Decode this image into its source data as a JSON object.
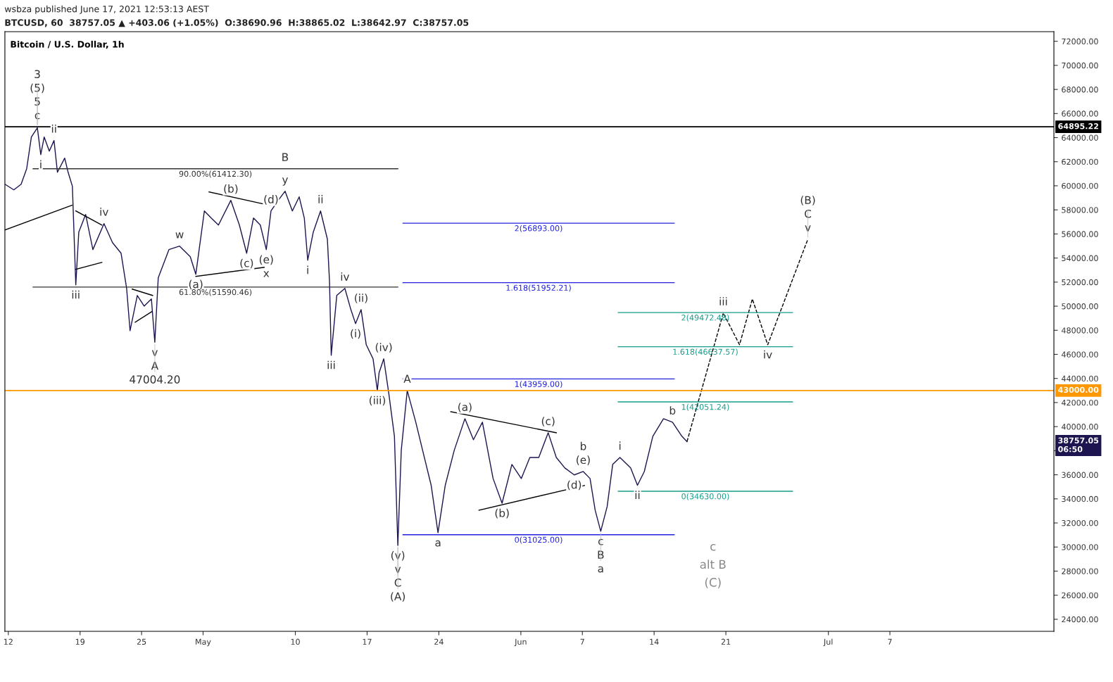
{
  "chart_data": {
    "type": "line",
    "title": "Bitcoin / U.S. Dollar, 1h",
    "xlim": [
      "2021-04-11T16:00",
      "2021-07-23T00:00"
    ],
    "xticks": [
      {
        "value": "2021-04-12",
        "label": "12"
      },
      {
        "value": "2021-04-19",
        "label": "19"
      },
      {
        "value": "2021-04-25",
        "label": "25"
      },
      {
        "value": "2021-05-01",
        "label": "May"
      },
      {
        "value": "2021-05-10",
        "label": "10"
      },
      {
        "value": "2021-05-17",
        "label": "17"
      },
      {
        "value": "2021-05-24",
        "label": "24"
      },
      {
        "value": "2021-06-01",
        "label": "Jun"
      },
      {
        "value": "2021-06-07",
        "label": "7"
      },
      {
        "value": "2021-06-14",
        "label": "14"
      },
      {
        "value": "2021-06-21",
        "label": "21"
      },
      {
        "value": "2021-07-01",
        "label": "Jul"
      },
      {
        "value": "2021-07-07",
        "label": "7"
      }
    ],
    "ylim": [
      23000,
      72800
    ],
    "yticks": [
      {
        "value": 24000,
        "label": "24000.00"
      },
      {
        "value": 26000,
        "label": "26000.00"
      },
      {
        "value": 28000,
        "label": "28000.00"
      },
      {
        "value": 30000,
        "label": "30000.00"
      },
      {
        "value": 32000,
        "label": "32000.00"
      },
      {
        "value": 34000,
        "label": "34000.00"
      },
      {
        "value": 36000,
        "label": "36000.00"
      },
      {
        "value": 38000,
        "label": null
      },
      {
        "value": 40000,
        "label": "40000.00"
      },
      {
        "value": 42000,
        "label": "42000.00"
      },
      {
        "value": 44000,
        "label": "44000.00"
      },
      {
        "value": 46000,
        "label": "46000.00"
      },
      {
        "value": 48000,
        "label": "48000.00"
      },
      {
        "value": 50000,
        "label": "50000.00"
      },
      {
        "value": 52000,
        "label": "52000.00"
      },
      {
        "value": 54000,
        "label": "54000.00"
      },
      {
        "value": 56000,
        "label": "56000.00"
      },
      {
        "value": 58000,
        "label": "58000.00"
      },
      {
        "value": 60000,
        "label": "60000.00"
      },
      {
        "value": 62000,
        "label": "62000.00"
      },
      {
        "value": 64000,
        "label": "64000.00"
      },
      {
        "value": 66000,
        "label": "66000.00"
      },
      {
        "value": 68000,
        "label": "68000.00"
      },
      {
        "value": 70000,
        "label": "70000.00"
      },
      {
        "value": 72000,
        "label": "72000.00"
      }
    ],
    "grid": false,
    "series": [
      {
        "color": "#1c1550",
        "line_style": "solid",
        "x": [
          "2021-04-11T16:00",
          "2021-04-12T13:00",
          "2021-04-13T06:00",
          "2021-04-13T19:00",
          "2021-04-14T06:00",
          "2021-04-14T20:00",
          "2021-04-15T04:00",
          "2021-04-15T12:00",
          "2021-04-16T00:00",
          "2021-04-16T11:00",
          "2021-04-16T19:00",
          "2021-04-17T12:00",
          "2021-04-17T20:00",
          "2021-04-18T06:00",
          "2021-04-18T14:00",
          "2021-04-18T21:00",
          "2021-04-19T13:00",
          "2021-04-20T06:00",
          "2021-04-21T08:00",
          "2021-04-22T04:00",
          "2021-04-23T00:00",
          "2021-04-23T13:00",
          "2021-04-23T21:00",
          "2021-04-24T14:00",
          "2021-04-25T06:00",
          "2021-04-25T23:00",
          "2021-04-26T07:00",
          "2021-04-26T15:00",
          "2021-04-27T16:00",
          "2021-04-28T17:00",
          "2021-04-29T18:00",
          "2021-04-30T07:00",
          "2021-05-01T03:00",
          "2021-05-01T19:00",
          "2021-05-02T12:00",
          "2021-05-03T17:00",
          "2021-05-04T13:00",
          "2021-05-05T06:00",
          "2021-05-05T22:00",
          "2021-05-06T14:00",
          "2021-05-07T04:00",
          "2021-05-07T15:00",
          "2021-05-08T08:00",
          "2021-05-09T00:00",
          "2021-05-09T17:00",
          "2021-05-10T09:00",
          "2021-05-10T21:00",
          "2021-05-11T05:00",
          "2021-05-11T18:00",
          "2021-05-12T11:00",
          "2021-05-13T03:00",
          "2021-05-13T08:00",
          "2021-05-13T12:00",
          "2021-05-14T01:00",
          "2021-05-14T20:00",
          "2021-05-15T10:00",
          "2021-05-15T21:00",
          "2021-05-16T10:00",
          "2021-05-16T22:00",
          "2021-05-17T14:00",
          "2021-05-18T00:00",
          "2021-05-18T04:00",
          "2021-05-18T15:00",
          "2021-05-19T03:00",
          "2021-05-19T16:00",
          "2021-05-20T00:00",
          "2021-05-20T08:00",
          "2021-05-20T22:00",
          "2021-05-21T18:00",
          "2021-05-22T10:00",
          "2021-05-23T06:00",
          "2021-05-23T22:00",
          "2021-05-24T15:00",
          "2021-05-25T12:00",
          "2021-05-26T13:00",
          "2021-05-27T09:00",
          "2021-05-28T06:00",
          "2021-05-29T07:00",
          "2021-05-30T04:00",
          "2021-05-31T03:00",
          "2021-06-01T01:00",
          "2021-06-01T21:00",
          "2021-06-02T18:00",
          "2021-06-03T16:00",
          "2021-06-04T11:00",
          "2021-06-05T07:00",
          "2021-06-06T05:00",
          "2021-06-07T02:00",
          "2021-06-07T18:00",
          "2021-06-08T06:00",
          "2021-06-08T19:00",
          "2021-06-09T10:00",
          "2021-06-09T23:00",
          "2021-06-10T16:00",
          "2021-06-11T17:00",
          "2021-06-12T09:00",
          "2021-06-13T01:00",
          "2021-06-13T21:00",
          "2021-06-14T22:00",
          "2021-06-15T19:00",
          "2021-06-16T17:00",
          "2021-06-17T05:00"
        ],
        "values": [
          60130,
          59660,
          60130,
          61420,
          64050,
          64810,
          62590,
          64050,
          62880,
          63760,
          61120,
          62300,
          61120,
          59960,
          51770,
          56160,
          57620,
          54700,
          56860,
          55280,
          54400,
          51480,
          47970,
          50890,
          50010,
          50600,
          47004.2,
          52350,
          54700,
          54990,
          54110,
          52650,
          57910,
          57320,
          56740,
          58790,
          56740,
          54400,
          57320,
          56740,
          54700,
          57910,
          58790,
          59550,
          57910,
          59080,
          57320,
          53820,
          56160,
          57910,
          55570,
          52060,
          45920,
          50890,
          51480,
          49720,
          48550,
          49720,
          46800,
          45630,
          43000,
          44460,
          45630,
          42710,
          39200,
          30130,
          38030,
          43000,
          40370,
          38030,
          35130,
          31190,
          35130,
          38030,
          40660,
          38910,
          40370,
          35690,
          33640,
          36860,
          35690,
          37440,
          37440,
          39490,
          37440,
          36570,
          35990,
          36270,
          35690,
          33060,
          31310,
          33350,
          36860,
          37440,
          36570,
          35130,
          36270,
          39200,
          40660,
          40370,
          39200,
          38757.05
        ]
      },
      {
        "color": "#000000",
        "line_style": "dashed",
        "x": [
          "2021-06-17T05:00",
          "2021-06-20T18:00",
          "2021-06-22T08:00",
          "2021-06-23T14:00",
          "2021-06-25T02:00",
          "2021-06-29T00:00"
        ],
        "values": [
          38757.05,
          49430,
          46800,
          50600,
          46800,
          55570
        ]
      },
      {
        "color": "#000000",
        "line_style": "solid",
        "x": [
          "2021-04-11T16:00",
          "2021-04-18T05:00"
        ],
        "values": [
          56330,
          58380
        ]
      },
      {
        "color": "#000000",
        "line_style": "solid",
        "x": [
          "2021-04-18T14:00",
          "2021-04-21T03:00"
        ],
        "values": [
          57910,
          56740
        ]
      },
      {
        "color": "#000000",
        "line_style": "solid",
        "x": [
          "2021-04-18T14:00",
          "2021-04-21T03:00"
        ],
        "values": [
          53060,
          53640
        ]
      },
      {
        "color": "#000000",
        "line_style": "solid",
        "x": [
          "2021-04-24T02:00",
          "2021-04-26T02:00"
        ],
        "values": [
          51420,
          50890
        ]
      },
      {
        "color": "#000000",
        "line_style": "solid",
        "x": [
          "2021-04-24T09:00",
          "2021-04-26T00:00"
        ],
        "values": [
          48670,
          49550
        ]
      },
      {
        "color": "#000000",
        "line_style": "solid",
        "x": [
          "2021-05-01T14:00",
          "2021-05-07T12:00"
        ],
        "values": [
          59490,
          58380
        ]
      },
      {
        "color": "#000000",
        "line_style": "solid",
        "x": [
          "2021-04-30T07:00",
          "2021-05-06T23:00"
        ],
        "values": [
          52470,
          53230
        ]
      },
      {
        "color": "#000000",
        "line_style": "solid",
        "x": [
          "2021-05-25T04:00",
          "2021-06-04T11:00"
        ],
        "values": [
          41240,
          39490
        ]
      },
      {
        "color": "#000000",
        "line_style": "solid",
        "x": [
          "2021-05-27T22:00",
          "2021-06-07T05:00"
        ],
        "values": [
          33060,
          35110
        ]
      },
      {
        "name": "90.00%(61412.30)",
        "color": "#333333",
        "line_style": "solid",
        "x": [
          "2021-04-14T10:00",
          "2021-05-20T00:00"
        ],
        "values": [
          61412.3,
          61412.3
        ]
      },
      {
        "name": "61.80%(51590.46)",
        "color": "#333333",
        "line_style": "solid",
        "x": [
          "2021-04-14T10:00",
          "2021-05-20T00:00"
        ],
        "values": [
          51590.46,
          51590.46
        ]
      },
      {
        "name": "2(56893.00)",
        "color": "#2020e0",
        "line_style": "solid",
        "x": [
          "2021-05-20T12:00",
          "2021-06-15T23:00"
        ],
        "values": [
          56893.0,
          56893.0
        ]
      },
      {
        "name": "1.618(51952.21)",
        "color": "#2020e0",
        "line_style": "solid",
        "x": [
          "2021-05-20T12:00",
          "2021-06-15T23:00"
        ],
        "values": [
          51952.21,
          51952.21
        ]
      },
      {
        "name": "1(43959.00)",
        "color": "#2020e0",
        "line_style": "solid",
        "x": [
          "2021-05-20T12:00",
          "2021-06-15T23:00"
        ],
        "values": [
          43959.0,
          43959.0
        ]
      },
      {
        "name": "0(31025.00)",
        "color": "#2020e0",
        "line_style": "solid",
        "x": [
          "2021-05-20T12:00",
          "2021-06-15T23:00"
        ],
        "values": [
          31025.0,
          31025.0
        ]
      },
      {
        "name": "2(49472.48)",
        "color": "#159c8a",
        "line_style": "solid",
        "x": [
          "2021-06-10T12:00",
          "2021-06-27T12:00"
        ],
        "values": [
          49472.48,
          49472.48
        ]
      },
      {
        "name": "1.618(46637.57)",
        "color": "#159c8a",
        "line_style": "solid",
        "x": [
          "2021-06-10T12:00",
          "2021-06-27T12:00"
        ],
        "values": [
          46637.57,
          46637.57
        ]
      },
      {
        "name": "1(42051.24)",
        "color": "#159c8a",
        "line_style": "solid",
        "x": [
          "2021-06-10T12:00",
          "2021-06-27T12:00"
        ],
        "values": [
          42051.24,
          42051.24
        ]
      },
      {
        "name": "0(34630.00)",
        "color": "#159c8a",
        "line_style": "solid",
        "x": [
          "2021-06-10T12:00",
          "2021-06-27T12:00"
        ],
        "values": [
          34630.0,
          34630.0
        ]
      }
    ],
    "ref_lines": [
      {
        "axis": "y",
        "value": 64895.22,
        "label": "64895.22",
        "color": "#000000"
      },
      {
        "axis": "y",
        "value": 43000.0,
        "label": "43000.00",
        "color": "#ff9800"
      }
    ],
    "annotations": [
      "wsbza published June 17, 2021 12:53:13 AEST",
      "BTCUSD, 60  38757.05 ▲ +403.06 (+1.05%)  O:38690.96  H:38865.02  L:38642.97  C:38757.05",
      "38757.05\n06:50",
      "c",
      "alt B",
      "(C)",
      {
        "text": "3",
        "x": "2021-04-14T20:00",
        "y": 64895.22
      },
      {
        "text": "(5)",
        "x": "2021-04-14T20:00",
        "y": 64895.22
      },
      {
        "text": "5",
        "x": "2021-04-14T20:00",
        "y": 64895.22
      },
      {
        "text": "c",
        "x": "2021-04-14T20:00",
        "y": 64895.22
      },
      {
        "text": "ii",
        "x": "2021-04-16T11:00",
        "y": 63760
      },
      {
        "text": "i",
        "x": "2021-04-15T04:00",
        "y": 62590
      },
      {
        "text": "iii",
        "x": "2021-04-18T14:00",
        "y": 51770
      },
      {
        "text": "iv",
        "x": "2021-04-21T08:00",
        "y": 56860
      },
      {
        "text": "v",
        "x": "2021-04-26T07:00",
        "y": 47004.2
      },
      {
        "text": "A",
        "x": "2021-04-26T07:00",
        "y": 47004.2
      },
      {
        "text": "47004.20",
        "x": "2021-04-26T07:00",
        "y": 47004.2
      },
      {
        "text": "w",
        "x": "2021-04-28T17:00",
        "y": 54990
      },
      {
        "text": "(a)",
        "x": "2021-04-30T07:00",
        "y": 52650
      },
      {
        "text": "(b)",
        "x": "2021-05-03T17:00",
        "y": 58790
      },
      {
        "text": "(c)",
        "x": "2021-05-05T06:00",
        "y": 54400
      },
      {
        "text": "(d)",
        "x": "2021-05-07T15:00",
        "y": 57910
      },
      {
        "text": "(e)",
        "x": "2021-05-07T04:00",
        "y": 54700
      },
      {
        "text": "x",
        "x": "2021-05-07T04:00",
        "y": 54700
      },
      {
        "text": "B",
        "x": "2021-05-09T00:00",
        "y": 61412.3
      },
      {
        "text": "y",
        "x": "2021-05-09T00:00",
        "y": 59550
      },
      {
        "text": "ii",
        "x": "2021-05-12T11:00",
        "y": 57910
      },
      {
        "text": "i",
        "x": "2021-05-11T05:00",
        "y": 53820
      },
      {
        "text": "iv",
        "x": "2021-05-14T20:00",
        "y": 51480
      },
      {
        "text": "iii",
        "x": "2021-05-13T12:00",
        "y": 45920
      },
      {
        "text": "(ii)",
        "x": "2021-05-16T10:00",
        "y": 49720
      },
      {
        "text": "(i)",
        "x": "2021-05-15T21:00",
        "y": 48550
      },
      {
        "text": "(iv)",
        "x": "2021-05-18T15:00",
        "y": 45630
      },
      {
        "text": "(iii)",
        "x": "2021-05-18T00:00",
        "y": 43000
      },
      {
        "text": "(v)",
        "x": "2021-05-20T00:00",
        "y": 30130
      },
      {
        "text": "v",
        "x": "2021-05-20T00:00",
        "y": 30130
      },
      {
        "text": "C",
        "x": "2021-05-20T00:00",
        "y": 30130
      },
      {
        "text": "(A)",
        "x": "2021-05-20T00:00",
        "y": 30130
      },
      {
        "text": "A",
        "x": "2021-05-20T22:00",
        "y": 43000
      },
      {
        "text": "a",
        "x": "2021-05-23T22:00",
        "y": 31190
      },
      {
        "text": "(a)",
        "x": "2021-05-26T13:00",
        "y": 40660
      },
      {
        "text": "(b)",
        "x": "2021-05-30T04:00",
        "y": 33640
      },
      {
        "text": "(c)",
        "x": "2021-06-03T16:00",
        "y": 39490
      },
      {
        "text": "(d)",
        "x": "2021-06-06T05:00",
        "y": 35990
      },
      {
        "text": "b",
        "x": "2021-06-07T02:00",
        "y": 36270
      },
      {
        "text": "(e)",
        "x": "2021-06-07T02:00",
        "y": 36270
      },
      {
        "text": "c",
        "x": "2021-06-08T19:00",
        "y": 31310
      },
      {
        "text": "B",
        "x": "2021-06-08T19:00",
        "y": 31310
      },
      {
        "text": "a",
        "x": "2021-06-08T19:00",
        "y": 31310
      },
      {
        "text": "i",
        "x": "2021-06-10T16:00",
        "y": 37440
      },
      {
        "text": "ii",
        "x": "2021-06-12T09:00",
        "y": 35130
      },
      {
        "text": "b",
        "x": "2021-06-15T19:00",
        "y": 40370
      },
      {
        "text": "iii",
        "x": "2021-06-20T18:00",
        "y": 49430
      },
      {
        "text": "iv",
        "x": "2021-06-25T02:00",
        "y": 46800
      },
      {
        "text": "(B)",
        "x": "2021-06-29T00:00",
        "y": 55570
      },
      {
        "text": "C",
        "x": "2021-06-29T00:00",
        "y": 55570
      },
      {
        "text": "v",
        "x": "2021-06-29T00:00",
        "y": 55570
      }
    ]
  }
}
